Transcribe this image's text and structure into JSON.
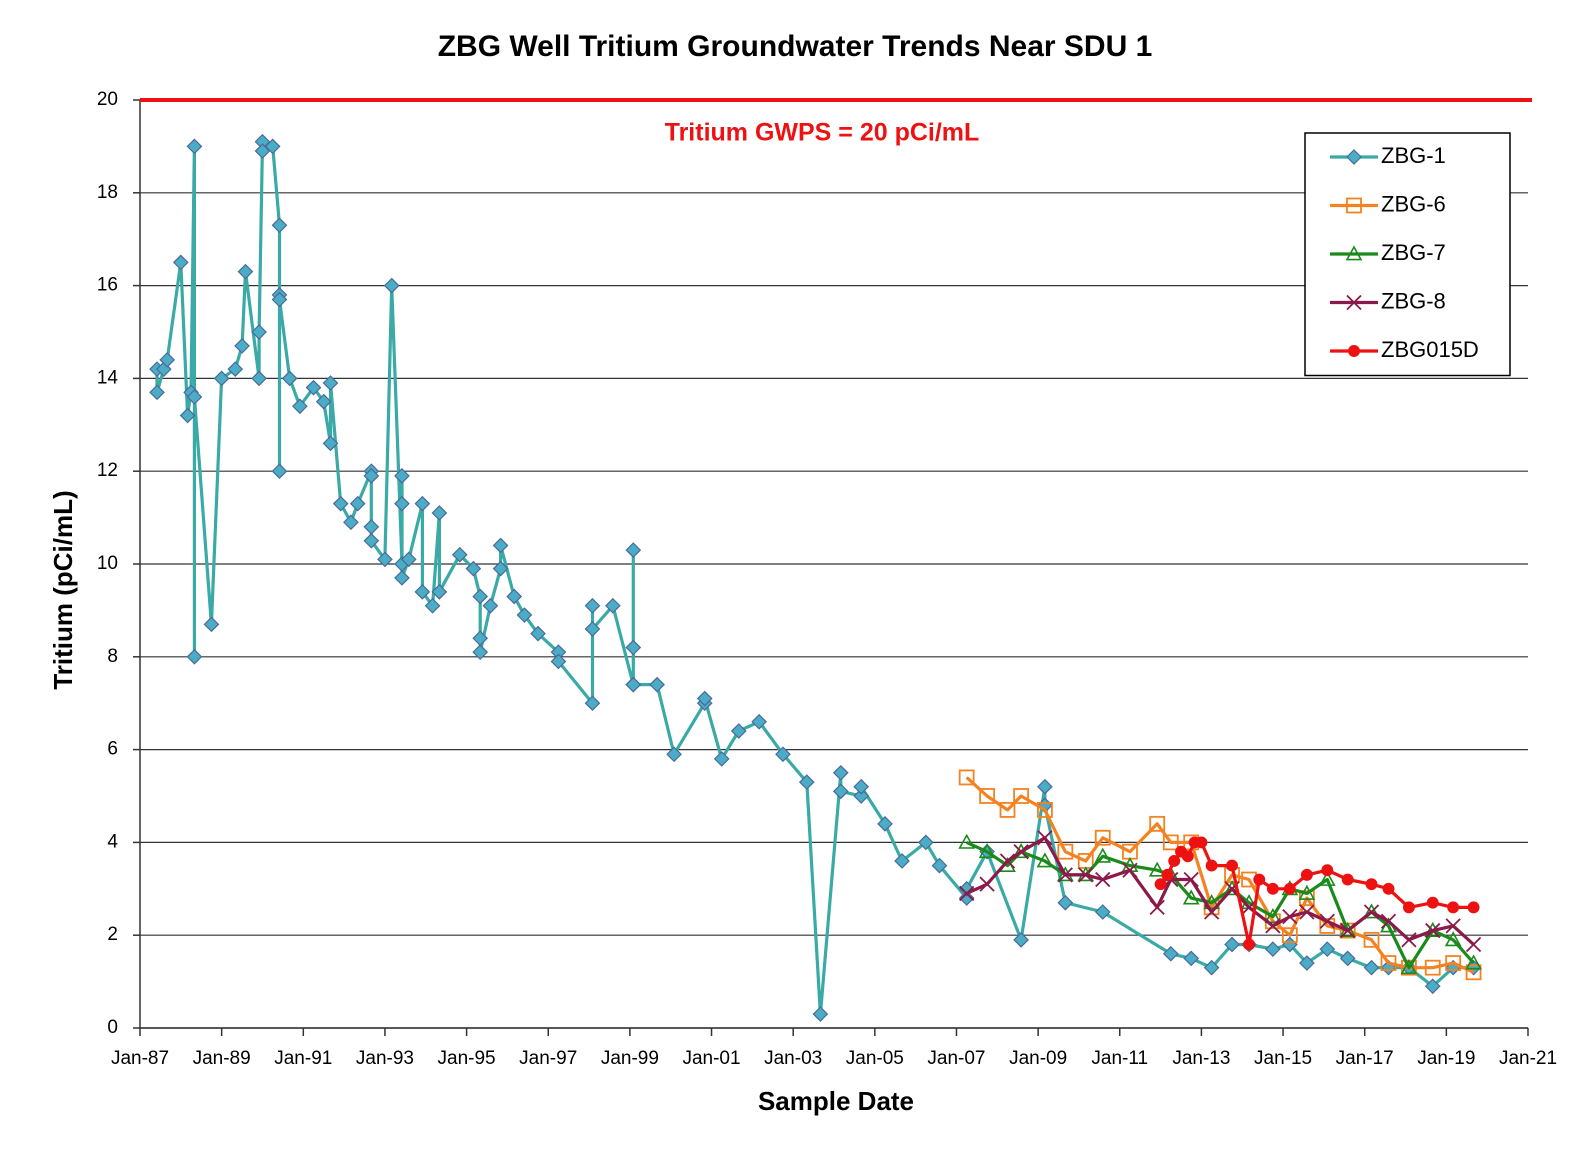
{
  "chart_data": {
    "type": "line",
    "title": "ZBG Well Tritium Groundwater Trends Near SDU 1",
    "x_label": "Sample Date",
    "y_label": "Tritium  (pCi/mL)",
    "threshold": {
      "value": 20,
      "label": "Tritium GWPS = 20 pCi/mL",
      "color": "#ee1111"
    },
    "xlim": [
      "1987-01",
      "2021-01"
    ],
    "xticks": [
      {
        "value": "1987-01",
        "label": "Jan-87"
      },
      {
        "value": "1989-01",
        "label": "Jan-89"
      },
      {
        "value": "1991-01",
        "label": "Jan-91"
      },
      {
        "value": "1993-01",
        "label": "Jan-93"
      },
      {
        "value": "1995-01",
        "label": "Jan-95"
      },
      {
        "value": "1997-01",
        "label": "Jan-97"
      },
      {
        "value": "1999-01",
        "label": "Jan-99"
      },
      {
        "value": "2001-01",
        "label": "Jan-01"
      },
      {
        "value": "2003-01",
        "label": "Jan-03"
      },
      {
        "value": "2005-01",
        "label": "Jan-05"
      },
      {
        "value": "2007-01",
        "label": "Jan-07"
      },
      {
        "value": "2009-01",
        "label": "Jan-09"
      },
      {
        "value": "2011-01",
        "label": "Jan-11"
      },
      {
        "value": "2013-01",
        "label": "Jan-13"
      },
      {
        "value": "2015-01",
        "label": "Jan-15"
      },
      {
        "value": "2017-01",
        "label": "Jan-17"
      },
      {
        "value": "2019-01",
        "label": "Jan-19"
      },
      {
        "value": "2021-01",
        "label": "Jan-21"
      }
    ],
    "ylim": [
      0,
      20
    ],
    "yticks": [
      0,
      2,
      4,
      6,
      8,
      10,
      12,
      14,
      16,
      18,
      20
    ],
    "grid": true,
    "legend": "top-right",
    "series": [
      {
        "name": "ZBG-1",
        "color": "#3aaaa6",
        "marker": "diamond",
        "marker_color": "#4bacc6",
        "x": [
          "1987-06",
          "1987-06",
          "1987-08",
          "1987-09",
          "1988-01",
          "1988-03",
          "1988-04",
          "1988-05",
          "1988-05",
          "1988-05",
          "1988-10",
          "1989-01",
          "1989-05",
          "1989-07",
          "1989-08",
          "1989-12",
          "1989-12",
          "1990-01",
          "1990-01",
          "1990-04",
          "1990-06",
          "1990-06",
          "1990-06",
          "1990-06",
          "1990-09",
          "1990-12",
          "1991-04",
          "1991-07",
          "1991-09",
          "1991-09",
          "1991-12",
          "1992-03",
          "1992-05",
          "1992-09",
          "1992-09",
          "1992-09",
          "1992-09",
          "1993-01",
          "1993-03",
          "1993-06",
          "1993-06",
          "1993-06",
          "1993-06",
          "1993-08",
          "1993-12",
          "1993-12",
          "1994-03",
          "1994-05",
          "1994-05",
          "1994-11",
          "1995-03",
          "1995-05",
          "1995-05",
          "1995-05",
          "1995-08",
          "1995-11",
          "1995-11",
          "1996-03",
          "1996-06",
          "1996-10",
          "1997-04",
          "1997-04",
          "1998-02",
          "1998-02",
          "1998-02",
          "1998-08",
          "1999-02",
          "1999-02",
          "1999-02",
          "1999-02",
          "1999-09",
          "2000-02",
          "2000-11",
          "2000-11",
          "2001-04",
          "2001-09",
          "2002-03",
          "2002-10",
          "2003-05",
          "2003-09",
          "2004-03",
          "2004-03",
          "2004-09",
          "2004-09",
          "2005-04",
          "2005-09",
          "2006-04",
          "2006-08",
          "2007-04",
          "2007-04",
          "2007-10",
          "2008-08",
          "2009-03",
          "2009-03",
          "2009-09",
          "2010-08",
          "2012-04",
          "2012-10",
          "2013-04",
          "2013-10",
          "2014-03",
          "2014-10",
          "2015-03",
          "2015-08",
          "2016-02",
          "2016-08",
          "2017-03",
          "2017-08",
          "2018-02",
          "2018-09",
          "2019-03",
          "2019-09"
        ],
        "values": [
          14.2,
          13.7,
          14.2,
          14.4,
          16.5,
          13.2,
          13.7,
          19.0,
          8.0,
          13.6,
          8.7,
          14.0,
          14.2,
          14.7,
          16.3,
          14.0,
          15.0,
          19.1,
          18.9,
          19.0,
          17.3,
          15.8,
          12.0,
          15.7,
          14.0,
          13.4,
          13.8,
          13.5,
          12.6,
          13.9,
          11.3,
          10.9,
          11.3,
          12.0,
          11.9,
          10.8,
          10.5,
          10.1,
          16.0,
          10.0,
          11.9,
          11.3,
          9.7,
          10.1,
          11.3,
          9.4,
          9.1,
          11.1,
          9.4,
          10.2,
          9.9,
          9.3,
          8.4,
          8.1,
          9.1,
          9.9,
          10.4,
          9.3,
          8.9,
          8.5,
          8.1,
          7.9,
          7.0,
          9.1,
          8.6,
          9.1,
          7.4,
          10.3,
          8.2,
          7.4,
          7.4,
          5.9,
          7.0,
          7.1,
          5.8,
          6.4,
          6.6,
          5.9,
          5.3,
          0.3,
          5.5,
          5.1,
          5.0,
          5.2,
          4.4,
          3.6,
          4.0,
          3.5,
          2.8,
          3.0,
          3.8,
          1.9,
          5.2,
          4.8,
          2.7,
          2.5,
          1.6,
          1.5,
          1.3,
          1.8,
          1.8,
          1.7,
          1.8,
          1.4,
          1.7,
          1.5,
          1.3,
          1.3,
          1.3,
          0.9,
          1.3,
          1.3
        ]
      },
      {
        "name": "ZBG-6",
        "color": "#f58220",
        "marker": "square",
        "marker_color": "#f58220",
        "x": [
          "2007-04",
          "2007-10",
          "2008-04",
          "2008-08",
          "2009-03",
          "2009-09",
          "2010-03",
          "2010-08",
          "2011-04",
          "2011-12",
          "2012-04",
          "2012-10",
          "2013-04",
          "2013-10",
          "2014-03",
          "2014-10",
          "2015-03",
          "2015-08",
          "2016-02",
          "2016-08",
          "2017-03",
          "2017-08",
          "2018-02",
          "2018-09",
          "2019-03",
          "2019-09"
        ],
        "values": [
          5.4,
          5.0,
          4.7,
          5.0,
          4.7,
          3.8,
          3.6,
          4.1,
          3.8,
          4.4,
          4.0,
          4.0,
          2.6,
          3.3,
          3.2,
          2.3,
          2.0,
          2.8,
          2.2,
          2.1,
          1.9,
          1.4,
          1.3,
          1.3,
          1.4,
          1.2
        ]
      },
      {
        "name": "ZBG-7",
        "color": "#1a8a1a",
        "marker": "triangle",
        "marker_color": "#1a8a1a",
        "x": [
          "2007-04",
          "2007-10",
          "2008-04",
          "2008-08",
          "2009-03",
          "2009-09",
          "2010-03",
          "2010-08",
          "2011-04",
          "2011-12",
          "2012-04",
          "2012-10",
          "2013-04",
          "2013-10",
          "2014-03",
          "2014-10",
          "2015-03",
          "2015-08",
          "2016-02",
          "2016-08",
          "2017-03",
          "2017-08",
          "2018-02",
          "2018-09",
          "2019-03",
          "2019-09"
        ],
        "values": [
          4.0,
          3.8,
          3.5,
          3.8,
          3.6,
          3.3,
          3.3,
          3.7,
          3.5,
          3.4,
          3.3,
          2.8,
          2.7,
          3.0,
          2.7,
          2.4,
          3.0,
          2.9,
          3.2,
          2.1,
          2.5,
          2.2,
          1.3,
          2.1,
          1.9,
          1.4
        ]
      },
      {
        "name": "ZBG-8",
        "color": "#8b1a4a",
        "marker": "x",
        "marker_color": "#8b1a4a",
        "x": [
          "2007-04",
          "2007-10",
          "2008-04",
          "2008-08",
          "2009-03",
          "2009-09",
          "2010-03",
          "2010-08",
          "2011-04",
          "2011-12",
          "2012-04",
          "2012-10",
          "2013-04",
          "2013-10",
          "2014-03",
          "2014-10",
          "2015-03",
          "2015-08",
          "2016-02",
          "2016-08",
          "2017-03",
          "2017-08",
          "2018-02",
          "2018-09",
          "2019-03",
          "2019-09"
        ],
        "values": [
          2.9,
          3.1,
          3.6,
          3.8,
          4.1,
          3.3,
          3.3,
          3.2,
          3.4,
          2.6,
          3.2,
          3.2,
          2.5,
          3.0,
          2.6,
          2.2,
          2.4,
          2.5,
          2.3,
          2.1,
          2.5,
          2.3,
          1.9,
          2.1,
          2.2,
          1.8
        ]
      },
      {
        "name": "ZBG015D",
        "color": "#ee1111",
        "marker": "circle",
        "marker_color": "#ee1111",
        "x": [
          "2012-01",
          "2012-03",
          "2012-05",
          "2012-07",
          "2012-09",
          "2012-11",
          "2013-01",
          "2013-04",
          "2013-10",
          "2014-03",
          "2014-06",
          "2014-10",
          "2015-03",
          "2015-08",
          "2016-02",
          "2016-08",
          "2017-03",
          "2017-08",
          "2018-02",
          "2018-09",
          "2019-03",
          "2019-09"
        ],
        "values": [
          3.1,
          3.3,
          3.6,
          3.8,
          3.7,
          4.0,
          4.0,
          3.5,
          3.5,
          1.8,
          3.2,
          3.0,
          3.0,
          3.3,
          3.4,
          3.2,
          3.1,
          3.0,
          2.6,
          2.7,
          2.6,
          2.6
        ]
      }
    ]
  }
}
